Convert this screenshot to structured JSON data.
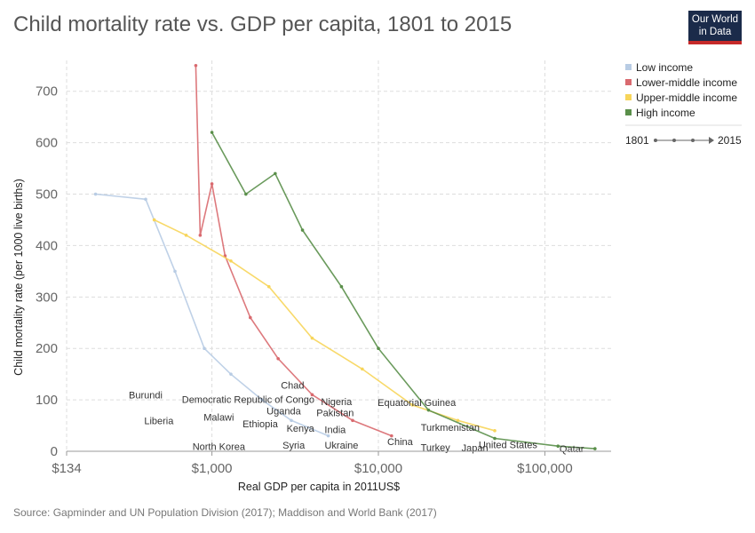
{
  "header": {
    "title": "Child mortality rate vs. GDP per capita, 1801 to 2015",
    "logo_line1": "Our World",
    "logo_line2": "in Data"
  },
  "footer": {
    "source": "Source: Gapminder and UN Population Division (2017); Maddison and World Bank (2017)"
  },
  "timeline": {
    "start": "1801",
    "end": "2015"
  },
  "chart_data": {
    "type": "line",
    "title": "Child mortality rate vs. GDP per capita, 1801 to 2015",
    "xlabel": "Real GDP per capita in 2011US$",
    "ylabel": "Child mortality rate (per 1000 live births)",
    "x_scale": "log",
    "xlim": [
      134,
      250000
    ],
    "ylim": [
      0,
      760
    ],
    "grid": true,
    "legend_position": "top-right",
    "x_ticks": [
      {
        "value": 134,
        "label": "$134"
      },
      {
        "value": 1000,
        "label": "$1,000"
      },
      {
        "value": 10000,
        "label": "$10,000"
      },
      {
        "value": 100000,
        "label": "$100,000"
      }
    ],
    "y_ticks": [
      0,
      100,
      200,
      300,
      400,
      500,
      600,
      700
    ],
    "legend": [
      {
        "name": "Low income",
        "color": "#b8cce4"
      },
      {
        "name": "Lower-middle income",
        "color": "#d96a6f"
      },
      {
        "name": "Upper-middle income",
        "color": "#f7d55a"
      },
      {
        "name": "High income",
        "color": "#5a8f4a"
      }
    ],
    "annotations": [
      {
        "text": "Burundi",
        "x": 400,
        "y": 103
      },
      {
        "text": "Democratic Republic of Congo",
        "x": 1650,
        "y": 94
      },
      {
        "text": "Chad",
        "x": 3050,
        "y": 122
      },
      {
        "text": "Nigeria",
        "x": 5600,
        "y": 90
      },
      {
        "text": "Uganda",
        "x": 2700,
        "y": 72
      },
      {
        "text": "Pakistan",
        "x": 5500,
        "y": 68
      },
      {
        "text": "Equatorial Guinea",
        "x": 17000,
        "y": 88
      },
      {
        "text": "Liberia",
        "x": 480,
        "y": 53
      },
      {
        "text": "Malawi",
        "x": 1100,
        "y": 60
      },
      {
        "text": "Ethiopia",
        "x": 1950,
        "y": 47
      },
      {
        "text": "Kenya",
        "x": 3400,
        "y": 38
      },
      {
        "text": "India",
        "x": 5500,
        "y": 35
      },
      {
        "text": "Turkmenistan",
        "x": 27000,
        "y": 40
      },
      {
        "text": "China",
        "x": 13500,
        "y": 12
      },
      {
        "text": "United States",
        "x": 60000,
        "y": 6
      },
      {
        "text": "North Korea",
        "x": 1100,
        "y": 3
      },
      {
        "text": "Syria",
        "x": 3100,
        "y": 5
      },
      {
        "text": "Ukraine",
        "x": 6000,
        "y": 5
      },
      {
        "text": "Turkey",
        "x": 22000,
        "y": 1
      },
      {
        "text": "Japan",
        "x": 38000,
        "y": 0
      },
      {
        "text": "Qatar",
        "x": 145000,
        "y": -2
      }
    ],
    "series": [
      {
        "name": "Low income",
        "color": "#b8cce4",
        "points": [
          [
            200,
            500
          ],
          [
            400,
            490
          ],
          [
            600,
            350
          ],
          [
            900,
            200
          ],
          [
            1300,
            150
          ],
          [
            2000,
            100
          ],
          [
            3000,
            60
          ],
          [
            5000,
            30
          ]
        ]
      },
      {
        "name": "Lower-middle income",
        "color": "#d96a6f",
        "points": [
          [
            800,
            750
          ],
          [
            850,
            420
          ],
          [
            1000,
            520
          ],
          [
            1200,
            380
          ],
          [
            1700,
            260
          ],
          [
            2500,
            180
          ],
          [
            4000,
            110
          ],
          [
            7000,
            60
          ],
          [
            12000,
            30
          ]
        ]
      },
      {
        "name": "Upper-middle income",
        "color": "#f7d55a",
        "points": [
          [
            450,
            450
          ],
          [
            700,
            420
          ],
          [
            1300,
            370
          ],
          [
            2200,
            320
          ],
          [
            4000,
            220
          ],
          [
            8000,
            160
          ],
          [
            16000,
            90
          ],
          [
            30000,
            60
          ],
          [
            50000,
            40
          ]
        ]
      },
      {
        "name": "High income",
        "color": "#5a8f4a",
        "points": [
          [
            1000,
            620
          ],
          [
            1600,
            500
          ],
          [
            2400,
            540
          ],
          [
            3500,
            430
          ],
          [
            6000,
            320
          ],
          [
            10000,
            200
          ],
          [
            20000,
            80
          ],
          [
            50000,
            25
          ],
          [
            120000,
            10
          ],
          [
            200000,
            5
          ]
        ]
      }
    ]
  }
}
